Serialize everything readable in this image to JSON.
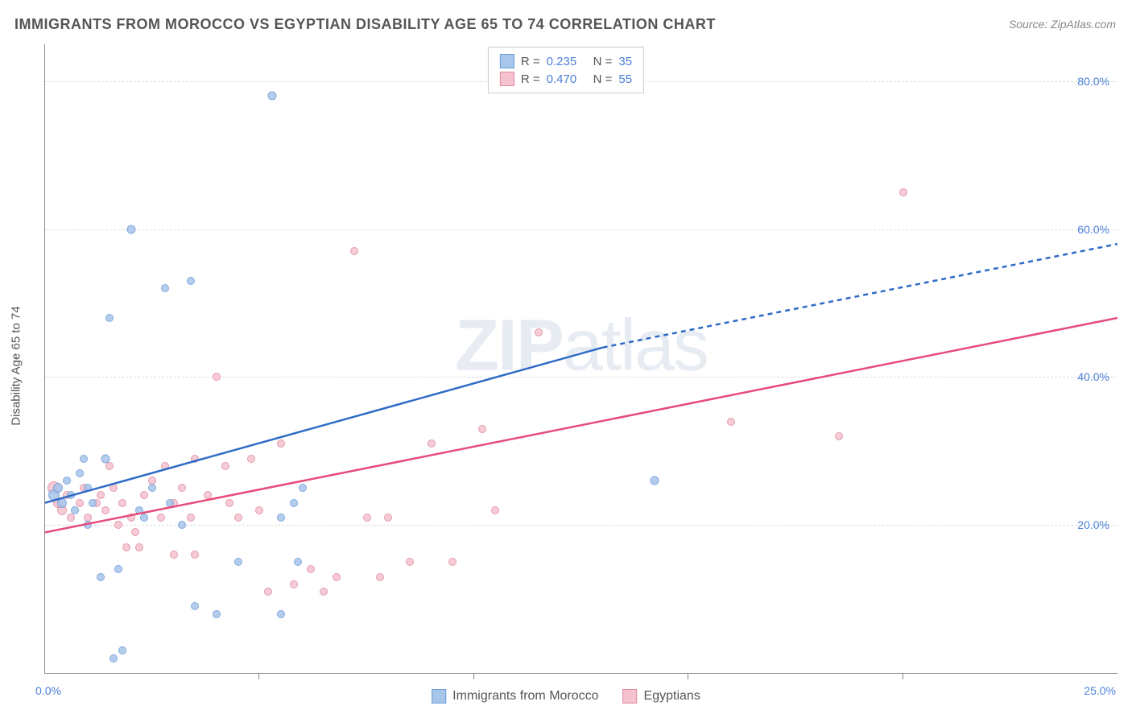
{
  "title": "IMMIGRANTS FROM MOROCCO VS EGYPTIAN DISABILITY AGE 65 TO 74 CORRELATION CHART",
  "source": "Source: ZipAtlas.com",
  "ylabel": "Disability Age 65 to 74",
  "watermark_bold": "ZIP",
  "watermark_rest": "atlas",
  "chart": {
    "type": "scatter",
    "xlim": [
      0,
      25
    ],
    "ylim": [
      0,
      85
    ],
    "ytick_step": 20,
    "xtick_step": 5,
    "x_label_0": "0.0%",
    "x_label_25": "25.0%",
    "grid_color": "#dddddd",
    "axis_color": "#888888",
    "background_color": "#ffffff"
  },
  "series": {
    "morocco": {
      "label": "Immigrants from Morocco",
      "color": "#a8c5ea",
      "border": "#6b9bd8",
      "line_color": "#2e6bc7",
      "r_value": "0.235",
      "n_value": "35",
      "trend": {
        "x1": 0,
        "y1": 23,
        "x2_solid": 13,
        "y2_solid": 44,
        "x2_dash": 25,
        "y2_dash": 58
      },
      "points": [
        {
          "x": 0.2,
          "y": 24,
          "s": 14
        },
        {
          "x": 0.3,
          "y": 25,
          "s": 12
        },
        {
          "x": 0.4,
          "y": 23,
          "s": 12
        },
        {
          "x": 0.5,
          "y": 26,
          "s": 10
        },
        {
          "x": 0.6,
          "y": 24,
          "s": 10
        },
        {
          "x": 0.7,
          "y": 22,
          "s": 10
        },
        {
          "x": 0.8,
          "y": 27,
          "s": 10
        },
        {
          "x": 0.9,
          "y": 29,
          "s": 10
        },
        {
          "x": 1.0,
          "y": 25,
          "s": 10
        },
        {
          "x": 1.1,
          "y": 23,
          "s": 10
        },
        {
          "x": 1.3,
          "y": 13,
          "s": 10
        },
        {
          "x": 1.4,
          "y": 29,
          "s": 11
        },
        {
          "x": 1.6,
          "y": 2,
          "s": 10
        },
        {
          "x": 1.7,
          "y": 14,
          "s": 10
        },
        {
          "x": 1.8,
          "y": 3,
          "s": 10
        },
        {
          "x": 2.0,
          "y": 60,
          "s": 11
        },
        {
          "x": 2.2,
          "y": 22,
          "s": 10
        },
        {
          "x": 2.3,
          "y": 21,
          "s": 10
        },
        {
          "x": 2.5,
          "y": 25,
          "s": 10
        },
        {
          "x": 2.8,
          "y": 52,
          "s": 10
        },
        {
          "x": 2.9,
          "y": 23,
          "s": 10
        },
        {
          "x": 3.2,
          "y": 20,
          "s": 10
        },
        {
          "x": 3.4,
          "y": 53,
          "s": 10
        },
        {
          "x": 3.5,
          "y": 9,
          "s": 10
        },
        {
          "x": 4.0,
          "y": 8,
          "s": 10
        },
        {
          "x": 4.5,
          "y": 15,
          "s": 10
        },
        {
          "x": 5.3,
          "y": 78,
          "s": 11
        },
        {
          "x": 5.5,
          "y": 21,
          "s": 10
        },
        {
          "x": 5.5,
          "y": 8,
          "s": 10
        },
        {
          "x": 5.8,
          "y": 23,
          "s": 10
        },
        {
          "x": 5.9,
          "y": 15,
          "s": 10
        },
        {
          "x": 6.0,
          "y": 25,
          "s": 10
        },
        {
          "x": 1.5,
          "y": 48,
          "s": 10
        },
        {
          "x": 14.2,
          "y": 26,
          "s": 11
        },
        {
          "x": 1.0,
          "y": 20,
          "s": 10
        }
      ]
    },
    "egyptians": {
      "label": "Egyptians",
      "color": "#f5c2cf",
      "border": "#e08aa0",
      "line_color": "#e74b7a",
      "r_value": "0.470",
      "n_value": "55",
      "trend": {
        "x1": 0,
        "y1": 19,
        "x2_solid": 25,
        "y2_solid": 48,
        "x2_dash": 25,
        "y2_dash": 48
      },
      "points": [
        {
          "x": 0.2,
          "y": 25,
          "s": 16
        },
        {
          "x": 0.3,
          "y": 23,
          "s": 12
        },
        {
          "x": 0.4,
          "y": 22,
          "s": 12
        },
        {
          "x": 0.5,
          "y": 24,
          "s": 10
        },
        {
          "x": 0.6,
          "y": 21,
          "s": 10
        },
        {
          "x": 0.8,
          "y": 23,
          "s": 10
        },
        {
          "x": 0.9,
          "y": 25,
          "s": 10
        },
        {
          "x": 1.0,
          "y": 21,
          "s": 10
        },
        {
          "x": 1.2,
          "y": 23,
          "s": 10
        },
        {
          "x": 1.3,
          "y": 24,
          "s": 10
        },
        {
          "x": 1.4,
          "y": 22,
          "s": 10
        },
        {
          "x": 1.5,
          "y": 28,
          "s": 10
        },
        {
          "x": 1.6,
          "y": 25,
          "s": 10
        },
        {
          "x": 1.8,
          "y": 23,
          "s": 10
        },
        {
          "x": 1.9,
          "y": 17,
          "s": 10
        },
        {
          "x": 2.0,
          "y": 21,
          "s": 10
        },
        {
          "x": 2.2,
          "y": 17,
          "s": 10
        },
        {
          "x": 2.3,
          "y": 24,
          "s": 10
        },
        {
          "x": 2.5,
          "y": 26,
          "s": 10
        },
        {
          "x": 2.7,
          "y": 21,
          "s": 10
        },
        {
          "x": 2.8,
          "y": 28,
          "s": 10
        },
        {
          "x": 3.0,
          "y": 23,
          "s": 10
        },
        {
          "x": 3.2,
          "y": 25,
          "s": 10
        },
        {
          "x": 3.4,
          "y": 21,
          "s": 10
        },
        {
          "x": 3.0,
          "y": 16,
          "s": 10
        },
        {
          "x": 3.5,
          "y": 29,
          "s": 10
        },
        {
          "x": 3.5,
          "y": 16,
          "s": 10
        },
        {
          "x": 3.8,
          "y": 24,
          "s": 10
        },
        {
          "x": 4.0,
          "y": 40,
          "s": 10
        },
        {
          "x": 4.2,
          "y": 28,
          "s": 10
        },
        {
          "x": 4.5,
          "y": 21,
          "s": 10
        },
        {
          "x": 4.8,
          "y": 29,
          "s": 10
        },
        {
          "x": 5.0,
          "y": 22,
          "s": 10
        },
        {
          "x": 5.2,
          "y": 11,
          "s": 10
        },
        {
          "x": 5.5,
          "y": 31,
          "s": 10
        },
        {
          "x": 5.8,
          "y": 12,
          "s": 10
        },
        {
          "x": 6.2,
          "y": 14,
          "s": 10
        },
        {
          "x": 6.5,
          "y": 11,
          "s": 10
        },
        {
          "x": 6.8,
          "y": 13,
          "s": 10
        },
        {
          "x": 7.2,
          "y": 57,
          "s": 10
        },
        {
          "x": 7.5,
          "y": 21,
          "s": 10
        },
        {
          "x": 7.8,
          "y": 13,
          "s": 10
        },
        {
          "x": 8.0,
          "y": 21,
          "s": 10
        },
        {
          "x": 8.5,
          "y": 15,
          "s": 10
        },
        {
          "x": 9.0,
          "y": 31,
          "s": 10
        },
        {
          "x": 9.5,
          "y": 15,
          "s": 10
        },
        {
          "x": 10.2,
          "y": 33,
          "s": 10
        },
        {
          "x": 10.5,
          "y": 22,
          "s": 10
        },
        {
          "x": 11.5,
          "y": 46,
          "s": 10
        },
        {
          "x": 16.0,
          "y": 34,
          "s": 10
        },
        {
          "x": 18.5,
          "y": 32,
          "s": 10
        },
        {
          "x": 20.0,
          "y": 65,
          "s": 10
        },
        {
          "x": 1.7,
          "y": 20,
          "s": 10
        },
        {
          "x": 2.1,
          "y": 19,
          "s": 10
        },
        {
          "x": 4.3,
          "y": 23,
          "s": 10
        }
      ]
    }
  },
  "legend_top": {
    "r_label": "R =",
    "n_label": "N ="
  }
}
